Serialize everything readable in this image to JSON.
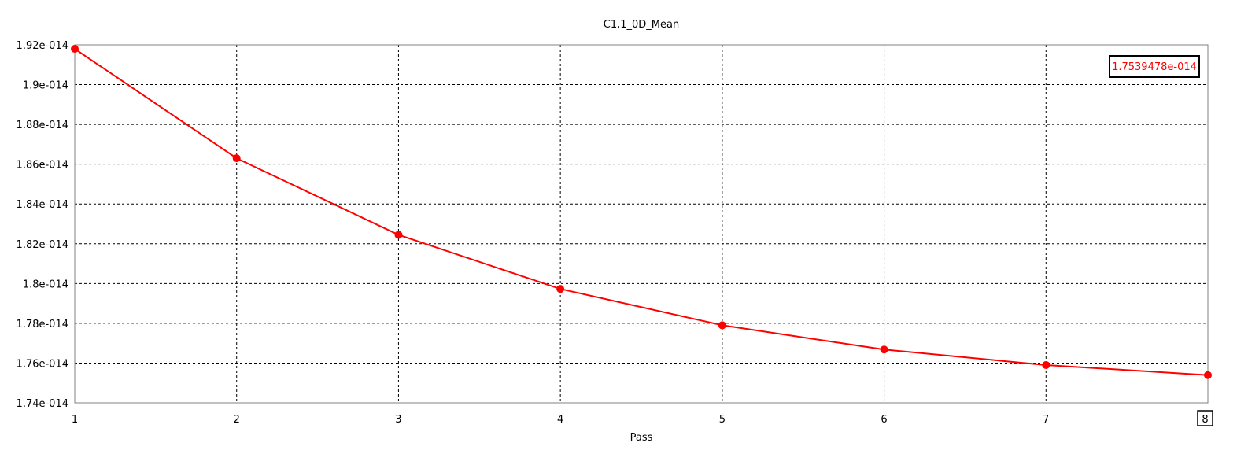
{
  "chart_data": {
    "type": "line",
    "title": "C1,1_0D_Mean",
    "xlabel": "Pass",
    "ylabel": "",
    "x": [
      1,
      2,
      3,
      4,
      5,
      6,
      7,
      8
    ],
    "xlim": [
      1,
      8
    ],
    "ylim": [
      1.74e-14,
      1.92e-14
    ],
    "x_tick_labels": [
      "1",
      "2",
      "3",
      "4",
      "5",
      "6",
      "7",
      "8"
    ],
    "y_ticks": [
      1.74e-14,
      1.76e-14,
      1.78e-14,
      1.8e-14,
      1.82e-14,
      1.84e-14,
      1.86e-14,
      1.88e-14,
      1.9e-14,
      1.92e-14
    ],
    "y_tick_labels": [
      "1.74e-014",
      "1.76e-014",
      "1.78e-014",
      "1.8e-014",
      "1.82e-014",
      "1.84e-014",
      "1.86e-014",
      "1.88e-014",
      "1.9e-014",
      "1.92e-014"
    ],
    "series": [
      {
        "color": "#ff0000",
        "values": [
          1.918e-14,
          1.863e-14,
          1.8245e-14,
          1.7973e-14,
          1.779e-14,
          1.7668e-14,
          1.759e-14,
          1.7539478e-14
        ]
      }
    ],
    "grid": true,
    "readout_value": "1.7539478e-014",
    "cursor_label": "8"
  }
}
